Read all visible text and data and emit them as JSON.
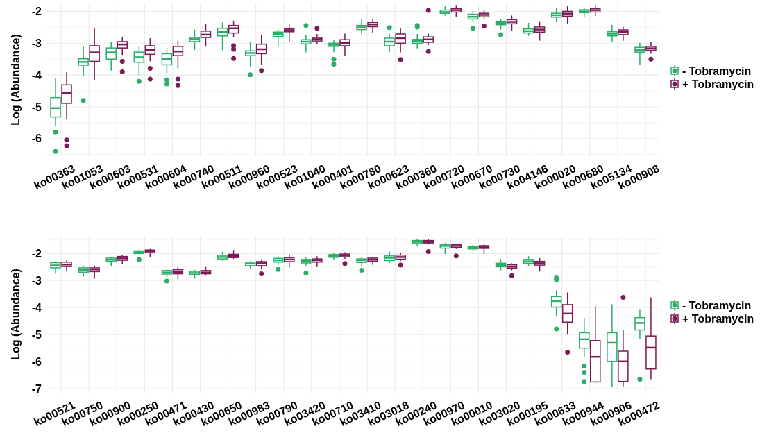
{
  "chart_data": [
    {
      "type": "box",
      "ylabel": "Log (Abundance)",
      "legend": "right",
      "grid": true,
      "ylim": [
        -6.55,
        -1.75
      ],
      "yticks": [
        -2,
        {
          "value": -2.5,
          "label": null
        },
        -3,
        {
          "value": -3.5,
          "label": null
        },
        -4,
        {
          "value": -4.5,
          "label": null
        },
        -5,
        {
          "value": -5.5,
          "label": null
        },
        -6,
        {
          "value": -6.5,
          "label": null
        }
      ],
      "categories": [
        "ko00363",
        "ko01053",
        "ko00603",
        "ko00531",
        "ko00604",
        "ko00740",
        "ko00511",
        "ko00960",
        "ko00523",
        "ko01040",
        "ko00401",
        "ko00780",
        "ko00623",
        "ko00360",
        "ko00720",
        "ko00670",
        "ko00730",
        "ko04146",
        "ko00020",
        "ko00680",
        "ko05134",
        "ko00908"
      ],
      "series": [
        {
          "name": "- Tobramycin",
          "color": "#2aae6a",
          "boxes": [
            {
              "low": -5.59,
              "q1": -5.32,
              "median": -5.04,
              "q3": -4.71,
              "high": -4.09,
              "outliers": [
                -5.79,
                -6.4
              ]
            },
            {
              "low": -4.02,
              "q1": -3.69,
              "median": -3.59,
              "q3": -3.49,
              "high": -3.11,
              "outliers": [
                -4.8
              ]
            },
            {
              "low": -3.86,
              "q1": -3.5,
              "median": -3.29,
              "q3": -3.15,
              "high": -2.97
            },
            {
              "low": -4.02,
              "q1": -3.6,
              "median": -3.44,
              "q3": -3.28,
              "high": -3.08,
              "outliers": [
                -4.2
              ]
            },
            {
              "low": -3.95,
              "q1": -3.68,
              "median": -3.5,
              "q3": -3.33,
              "high": -3.15,
              "outliers": [
                -4.15,
                -4.28
              ]
            },
            {
              "low": -3.21,
              "q1": -2.95,
              "median": -2.87,
              "q3": -2.82,
              "high": -2.57
            },
            {
              "low": -3.22,
              "q1": -2.77,
              "median": -2.64,
              "q3": -2.53,
              "high": -2.35
            },
            {
              "low": -3.73,
              "q1": -3.39,
              "median": -3.31,
              "q3": -3.24,
              "high": -2.97,
              "outliers": [
                -3.99
              ]
            },
            {
              "low": -3.08,
              "q1": -2.79,
              "median": -2.71,
              "q3": -2.65,
              "high": -2.57
            },
            {
              "low": -3.29,
              "q1": -3.02,
              "median": -2.95,
              "q3": -2.89,
              "high": -2.75,
              "outliers": [
                -2.44
              ]
            },
            {
              "low": -3.28,
              "q1": -3.1,
              "median": -3.05,
              "q3": -3.0,
              "high": -2.89,
              "outliers": [
                -3.5,
                -3.66
              ]
            },
            {
              "low": -2.71,
              "q1": -2.57,
              "median": -2.5,
              "q3": -2.44,
              "high": -2.24
            },
            {
              "low": -3.29,
              "q1": -3.08,
              "median": -2.95,
              "q3": -2.84,
              "high": -2.7,
              "outliers": [
                -2.51
              ]
            },
            {
              "low": -3.16,
              "q1": -3.0,
              "median": -2.93,
              "q3": -2.88,
              "high": -2.71,
              "outliers": [
                -2.44,
                -2.49
              ]
            },
            {
              "low": -2.13,
              "q1": -2.06,
              "median": -2.02,
              "q3": -1.96,
              "high": -1.84
            },
            {
              "low": -2.31,
              "q1": -2.24,
              "median": -2.17,
              "q3": -2.09,
              "high": -1.99,
              "outliers": [
                -2.53
              ]
            },
            {
              "low": -2.57,
              "q1": -2.42,
              "median": -2.36,
              "q3": -2.31,
              "high": -2.24,
              "outliers": [
                -2.73
              ]
            },
            {
              "low": -2.77,
              "q1": -2.68,
              "median": -2.62,
              "q3": -2.55,
              "high": -2.36
            },
            {
              "low": -2.33,
              "q1": -2.18,
              "median": -2.12,
              "q3": -2.06,
              "high": -1.9
            },
            {
              "low": -2.17,
              "q1": -2.04,
              "median": -2.0,
              "q3": -1.95,
              "high": -1.88
            },
            {
              "low": -2.97,
              "q1": -2.77,
              "median": -2.7,
              "q3": -2.64,
              "high": -2.42
            },
            {
              "low": -3.67,
              "q1": -3.28,
              "median": -3.21,
              "q3": -3.13,
              "high": -2.99
            }
          ]
        },
        {
          "name": "+ Tobramycin",
          "color": "#7b1a55",
          "boxes": [
            {
              "low": -5.37,
              "q1": -4.89,
              "median": -4.57,
              "q3": -4.31,
              "high": -3.91,
              "outliers": [
                -6.04,
                -6.22
              ]
            },
            {
              "low": -4.17,
              "q1": -3.57,
              "median": -3.29,
              "q3": -3.08,
              "high": -2.53
            },
            {
              "low": -3.37,
              "q1": -3.15,
              "median": -3.04,
              "q3": -2.95,
              "high": -2.82,
              "outliers": [
                -3.57,
                -3.9
              ]
            },
            {
              "low": -3.57,
              "q1": -3.35,
              "median": -3.21,
              "q3": -3.08,
              "high": -2.84,
              "outliers": [
                -3.79,
                -4.13
              ]
            },
            {
              "low": -3.79,
              "q1": -3.39,
              "median": -3.26,
              "q3": -3.1,
              "high": -2.92,
              "outliers": [
                -4.13,
                -4.33
              ]
            },
            {
              "low": -3.11,
              "q1": -2.82,
              "median": -2.73,
              "q3": -2.62,
              "high": -2.39
            },
            {
              "low": -2.82,
              "q1": -2.68,
              "median": -2.53,
              "q3": -2.44,
              "high": -2.29,
              "outliers": [
                -3.08,
                -3.19,
                -3.48
              ]
            },
            {
              "low": -3.68,
              "q1": -3.33,
              "median": -3.19,
              "q3": -3.03,
              "high": -2.75,
              "outliers": [
                -3.86
              ]
            },
            {
              "low": -2.97,
              "q1": -2.64,
              "median": -2.59,
              "q3": -2.55,
              "high": -2.42
            },
            {
              "low": -3.02,
              "q1": -2.93,
              "median": -2.87,
              "q3": -2.82,
              "high": -2.71,
              "outliers": [
                -2.53
              ]
            },
            {
              "low": -3.4,
              "q1": -3.08,
              "median": -2.99,
              "q3": -2.89,
              "high": -2.7
            },
            {
              "low": -2.68,
              "q1": -2.48,
              "median": -2.41,
              "q3": -2.35,
              "high": -2.24
            },
            {
              "low": -3.29,
              "q1": -3.0,
              "median": -2.84,
              "q3": -2.71,
              "high": -2.53,
              "outliers": [
                -3.51
              ]
            },
            {
              "low": -3.06,
              "q1": -2.97,
              "median": -2.88,
              "q3": -2.8,
              "high": -2.7,
              "outliers": [
                -1.97,
                -3.26
              ]
            },
            {
              "low": -2.17,
              "q1": -2.02,
              "median": -1.96,
              "q3": -1.91,
              "high": -1.8
            },
            {
              "low": -2.24,
              "q1": -2.17,
              "median": -2.11,
              "q3": -2.06,
              "high": -1.95,
              "outliers": [
                -2.46
              ]
            },
            {
              "low": -2.6,
              "q1": -2.39,
              "median": -2.33,
              "q3": -2.26,
              "high": -2.13
            },
            {
              "low": -2.92,
              "q1": -2.65,
              "median": -2.57,
              "q3": -2.49,
              "high": -2.31
            },
            {
              "low": -2.39,
              "q1": -2.15,
              "median": -2.07,
              "q3": -2.0,
              "high": -1.83
            },
            {
              "low": -2.15,
              "q1": -2.02,
              "median": -1.96,
              "q3": -1.91,
              "high": -1.8
            },
            {
              "low": -2.92,
              "q1": -2.73,
              "median": -2.65,
              "q3": -2.58,
              "high": -2.48
            },
            {
              "low": -3.33,
              "q1": -3.22,
              "median": -3.16,
              "q3": -3.1,
              "high": -2.97,
              "outliers": [
                -3.5
              ]
            }
          ]
        }
      ]
    },
    {
      "type": "box",
      "ylabel": "Log (Abundance)",
      "legend": "right",
      "grid": true,
      "ylim": [
        -7.15,
        -1.35
      ],
      "yticks": [
        {
          "value": -1.5,
          "label": null
        },
        -2,
        {
          "value": -2.5,
          "label": null
        },
        -3,
        {
          "value": -3.5,
          "label": null
        },
        -4,
        {
          "value": -4.5,
          "label": null
        },
        -5,
        {
          "value": -5.5,
          "label": null
        },
        -6,
        {
          "value": -6.5,
          "label": null
        },
        -7
      ],
      "categories": [
        "ko00521",
        "ko00750",
        "ko00900",
        "ko00250",
        "ko00471",
        "ko00430",
        "ko00650",
        "ko00983",
        "ko00790",
        "ko03420",
        "ko00710",
        "ko03410",
        "ko03018",
        "ko00240",
        "ko00970",
        "ko00010",
        "ko03020",
        "ko00195",
        "ko00633",
        "ko00944",
        "ko00906",
        "ko00472"
      ],
      "series": [
        {
          "name": "- Tobramycin",
          "color": "#2aae6a",
          "boxes": [
            {
              "low": -2.74,
              "q1": -2.53,
              "median": -2.44,
              "q3": -2.34,
              "high": -2.28
            },
            {
              "low": -2.85,
              "q1": -2.69,
              "median": -2.6,
              "q3": -2.53,
              "high": -2.46
            },
            {
              "low": -2.48,
              "q1": -2.29,
              "median": -2.23,
              "q3": -2.17,
              "high": -2.13
            },
            {
              "low": -2.07,
              "q1": -2.0,
              "median": -1.95,
              "q3": -1.9,
              "high": -1.86,
              "outliers": [
                -2.22
              ]
            },
            {
              "low": -2.86,
              "q1": -2.76,
              "median": -2.7,
              "q3": -2.63,
              "high": -2.56,
              "outliers": [
                -3.02
              ]
            },
            {
              "low": -2.93,
              "q1": -2.78,
              "median": -2.72,
              "q3": -2.66,
              "high": -2.6
            },
            {
              "low": -2.27,
              "q1": -2.2,
              "median": -2.13,
              "q3": -2.07,
              "high": -1.93
            },
            {
              "low": -2.55,
              "q1": -2.45,
              "median": -2.37,
              "q3": -2.32,
              "high": -2.28
            },
            {
              "low": -2.42,
              "q1": -2.32,
              "median": -2.25,
              "q3": -2.18,
              "high": -2.1,
              "outliers": [
                -2.59
              ]
            },
            {
              "low": -2.45,
              "q1": -2.35,
              "median": -2.27,
              "q3": -2.22,
              "high": -2.15,
              "outliers": [
                -2.72
              ]
            },
            {
              "low": -2.23,
              "q1": -2.14,
              "median": -2.09,
              "q3": -2.04,
              "high": -1.97
            },
            {
              "low": -2.45,
              "q1": -2.33,
              "median": -2.25,
              "q3": -2.2,
              "high": -2.15,
              "outliers": [
                -2.62
              ]
            },
            {
              "low": -2.35,
              "q1": -2.26,
              "median": -2.16,
              "q3": -2.09,
              "high": -1.93
            },
            {
              "low": -1.71,
              "q1": -1.63,
              "median": -1.57,
              "q3": -1.52,
              "high": -1.46
            },
            {
              "low": -2.02,
              "q1": -1.8,
              "median": -1.72,
              "q3": -1.67,
              "high": -1.61
            },
            {
              "low": -1.88,
              "q1": -1.83,
              "median": -1.78,
              "q3": -1.75,
              "high": -1.68
            },
            {
              "low": -2.62,
              "q1": -2.49,
              "median": -2.43,
              "q3": -2.36,
              "high": -2.21
            },
            {
              "low": -2.45,
              "q1": -2.36,
              "median": -2.29,
              "q3": -2.22,
              "high": -2.1
            },
            {
              "low": -4.31,
              "q1": -3.98,
              "median": -3.76,
              "q3": -3.59,
              "high": -3.36,
              "outliers": [
                -2.9,
                -2.97,
                -4.79
              ]
            },
            {
              "low": -5.82,
              "q1": -5.5,
              "median": -5.17,
              "q3": -4.93,
              "high": -4.38,
              "outliers": [
                -6.17,
                -6.39,
                -6.73
              ]
            },
            {
              "low": -6.93,
              "q1": -5.99,
              "median": -5.3,
              "q3": -4.93,
              "high": -3.88
            },
            {
              "low": -5.17,
              "q1": -4.83,
              "median": -4.57,
              "q3": -4.37,
              "high": -4.08,
              "outliers": [
                -6.65
              ]
            }
          ]
        },
        {
          "name": "+ Tobramycin",
          "color": "#7b1a55",
          "boxes": [
            {
              "low": -2.67,
              "q1": -2.48,
              "median": -2.41,
              "q3": -2.32,
              "high": -2.25
            },
            {
              "low": -2.93,
              "q1": -2.67,
              "median": -2.59,
              "q3": -2.53,
              "high": -2.44
            },
            {
              "low": -2.4,
              "q1": -2.25,
              "median": -2.18,
              "q3": -2.11,
              "high": -2.04
            },
            {
              "low": -2.12,
              "q1": -1.97,
              "median": -1.92,
              "q3": -1.87,
              "high": -1.83
            },
            {
              "low": -2.95,
              "q1": -2.75,
              "median": -2.68,
              "q3": -2.6,
              "high": -2.5
            },
            {
              "low": -2.82,
              "q1": -2.75,
              "median": -2.7,
              "q3": -2.63,
              "high": -2.5
            },
            {
              "low": -2.2,
              "q1": -2.15,
              "median": -2.1,
              "q3": -2.03,
              "high": -1.87
            },
            {
              "low": -2.58,
              "q1": -2.45,
              "median": -2.36,
              "q3": -2.3,
              "high": -2.22,
              "outliers": [
                -2.75
              ]
            },
            {
              "low": -2.52,
              "q1": -2.3,
              "median": -2.22,
              "q3": -2.15,
              "high": -2.02
            },
            {
              "low": -2.5,
              "q1": -2.32,
              "median": -2.25,
              "q3": -2.2,
              "high": -2.1
            },
            {
              "low": -2.2,
              "q1": -2.12,
              "median": -2.07,
              "q3": -2.02,
              "high": -1.95,
              "outliers": [
                -2.37
              ]
            },
            {
              "low": -2.42,
              "q1": -2.28,
              "median": -2.22,
              "q3": -2.17,
              "high": -2.12
            },
            {
              "low": -2.28,
              "q1": -2.21,
              "median": -2.13,
              "q3": -2.06,
              "high": -1.96,
              "outliers": [
                -2.43
              ]
            },
            {
              "low": -1.67,
              "q1": -1.61,
              "median": -1.57,
              "q3": -1.52,
              "high": -1.48,
              "outliers": [
                -1.93
              ]
            },
            {
              "low": -1.83,
              "q1": -1.78,
              "median": -1.72,
              "q3": -1.67,
              "high": -1.65,
              "outliers": [
                -2.09
              ]
            },
            {
              "low": -2.02,
              "q1": -1.81,
              "median": -1.76,
              "q3": -1.71,
              "high": -1.65
            },
            {
              "low": -2.62,
              "q1": -2.55,
              "median": -2.49,
              "q3": -2.42,
              "high": -2.36,
              "outliers": [
                -2.82
              ]
            },
            {
              "low": -2.67,
              "q1": -2.43,
              "median": -2.36,
              "q3": -2.29,
              "high": -2.17
            },
            {
              "low": -5.0,
              "q1": -4.54,
              "median": -4.22,
              "q3": -3.89,
              "high": -3.44,
              "outliers": [
                -5.65
              ]
            },
            {
              "low": -6.78,
              "q1": -6.75,
              "median": -5.82,
              "q3": -5.22,
              "high": -3.95
            },
            {
              "low": -6.93,
              "q1": -6.73,
              "median": -5.99,
              "q3": -5.61,
              "high": -4.83,
              "outliers": [
                -3.62
              ]
            },
            {
              "low": -6.65,
              "q1": -6.27,
              "median": -5.48,
              "q3": -5.05,
              "high": -3.62
            }
          ]
        }
      ]
    }
  ]
}
